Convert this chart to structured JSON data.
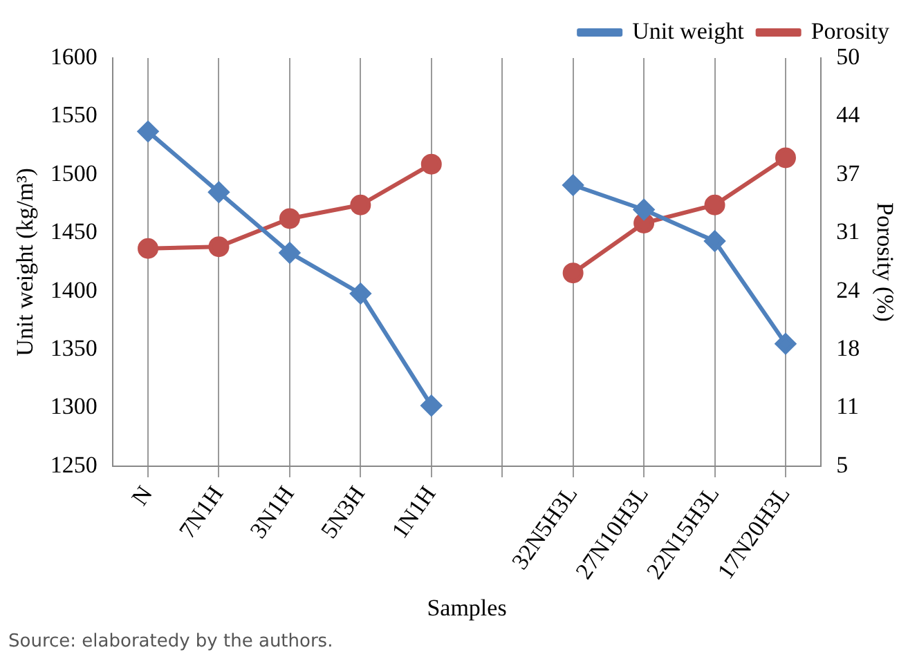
{
  "chart_data": {
    "type": "line",
    "xlabel": "Samples",
    "ylabel": "Unit weight (kg/m³)",
    "y2label": "Porosity (%)",
    "categories": [
      "N",
      "7N1H",
      "3N1H",
      "5N3H",
      "1N1H",
      null,
      "32N5H3L",
      "27N10H3L",
      "22N15H3L",
      "17N20H3L"
    ],
    "series": [
      {
        "name": "Unit weight",
        "color": "#4f81bd",
        "marker": "diamond",
        "values": [
          1537,
          1485,
          1433,
          1398,
          1302,
          null,
          1491,
          1470,
          1443,
          1355
        ]
      },
      {
        "name": "Porosity",
        "color": "#c0504d",
        "marker": "circle",
        "axis": "y2",
        "values": [
          29.0,
          29.2,
          32.3,
          33.8,
          38.3,
          null,
          26.3,
          31.8,
          33.8,
          39.0
        ]
      }
    ],
    "ylim": [
      1250,
      1600
    ],
    "yticks": [
      1250,
      1300,
      1350,
      1400,
      1450,
      1500,
      1550,
      1600
    ],
    "y2lim": [
      5,
      50
    ],
    "y2ticks": [
      5,
      {
        "value": 11.43,
        "label": "11"
      },
      {
        "value": 17.86,
        "label": "18"
      },
      {
        "value": 24.29,
        "label": "24"
      },
      {
        "value": 30.71,
        "label": "31"
      },
      {
        "value": 37.14,
        "label": "37"
      },
      {
        "value": 43.57,
        "label": "44"
      },
      50
    ],
    "grid": "x",
    "legend": "top right",
    "annotations": [
      "Source: elaboratedy by the authors."
    ]
  }
}
